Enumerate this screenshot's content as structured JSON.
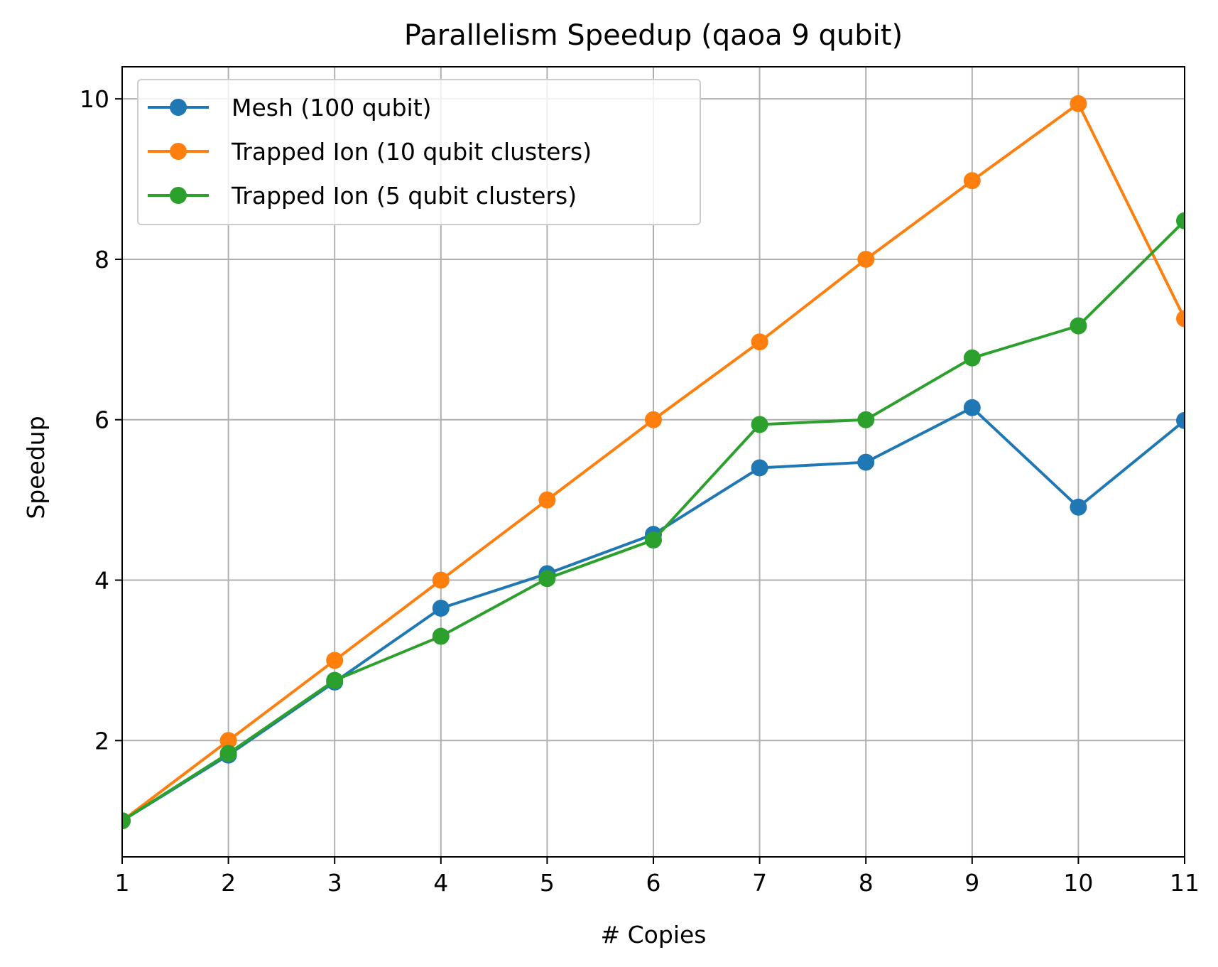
{
  "chart_data": {
    "type": "line",
    "title": "Parallelism Speedup (qaoa 9 qubit)",
    "xlabel": "# Copies",
    "ylabel": "Speedup",
    "x": [
      1,
      2,
      3,
      4,
      5,
      6,
      7,
      8,
      9,
      10,
      11
    ],
    "xlim": [
      1,
      11
    ],
    "ylim": [
      0.55,
      10.4
    ],
    "xticks": [
      1,
      2,
      3,
      4,
      5,
      6,
      7,
      8,
      9,
      10,
      11
    ],
    "yticks": [
      2,
      4,
      6,
      8,
      10
    ],
    "grid": true,
    "legend_position": "upper-left",
    "series": [
      {
        "name": "Mesh (100 qubit)",
        "color": "#1f77b4",
        "values": [
          1.0,
          1.82,
          2.73,
          3.65,
          4.08,
          4.57,
          5.4,
          5.47,
          6.15,
          4.91,
          5.99
        ]
      },
      {
        "name": "Trapped Ion (10 qubit clusters)",
        "color": "#ff7f0e",
        "values": [
          1.0,
          2.0,
          3.0,
          4.0,
          5.0,
          6.0,
          6.97,
          8.0,
          8.98,
          9.94,
          7.26
        ]
      },
      {
        "name": "Trapped Ion (5 qubit clusters)",
        "color": "#2ca02c",
        "values": [
          1.0,
          1.84,
          2.75,
          3.3,
          4.02,
          4.5,
          5.94,
          6.0,
          6.77,
          7.17,
          8.48
        ]
      }
    ]
  }
}
